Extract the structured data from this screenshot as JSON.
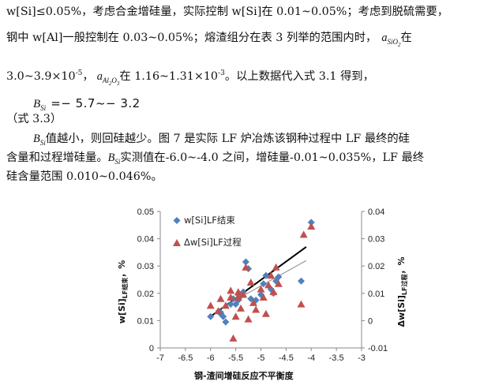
{
  "text": {
    "line1": "w[Si]≤0.05%，考虑合金增硅量，实际控制 w[Si]在 0.01~0.05%；考虑到脱硫需要，",
    "line2a": "钢中 w[Al]一般控制在 0.03~0.05%；熔渣组分在表 3 列举的范围内时，",
    "a_sym": "a",
    "sio2_sub": "SiO",
    "sio2_sub2": "2",
    "line2b": "在",
    "line3a": "3.0~3.9×10",
    "line3a_sup": "-5",
    "line3b": "，",
    "al2o3_sub": "Al",
    "al2o3_sub2": "2",
    "al2o3_sub3": "O",
    "al2o3_sub4": "3",
    "line3c": "在 1.16~1.31×10",
    "line3c_sup": "-3",
    "line3d": "。以上数据代入式 3.1 得到，",
    "formula_sym": "B",
    "formula_sub": "Si",
    "formula_rhs": "=− 5.7~− 3.2",
    "eq_label": "（式 3.3）",
    "para_sym": "B",
    "para_sub": "Si",
    "para1": "值越小，则回硅越少。图 7 是实际 LF 炉冶炼该钢种过程中 LF 最终的硅",
    "para2a": "含量和过程增硅量。",
    "para2b": "实测值在-6.0~-4.0 之间，增硅量-0.01~0.035%，LF 最终",
    "para3": "硅含量范围 0.010~0.046%。"
  },
  "chart_data": {
    "type": "scatter",
    "title": "",
    "xlabel": "钢-渣间增硅反应不平衡度",
    "ylabel_left": "w[Si]",
    "ylabel_left_sub": "LF结束",
    "ylabel_left_unit": "，%",
    "ylabel_right": "Δw[Si]",
    "ylabel_right_sub": "LF过程",
    "ylabel_right_unit": "，%",
    "xlim": [
      -7,
      -3
    ],
    "ylim_left": [
      0,
      0.05
    ],
    "ylim_right": [
      -0.01,
      0.04
    ],
    "x_ticks": [
      "-7",
      "-6.5",
      "-6",
      "-5.5",
      "-5",
      "-4.5",
      "-4",
      "-3.5",
      "-3"
    ],
    "y_left_ticks": [
      "0",
      "0.01",
      "0.02",
      "0.03",
      "0.04",
      "0.05"
    ],
    "y_right_ticks": [
      "-0.01",
      "0",
      "0.01",
      "0.02",
      "0.03",
      "0.04"
    ],
    "legend_placement": "top-left",
    "series": [
      {
        "name": "w[Si]LF结束",
        "marker": "diamond",
        "color": "#4f81bd",
        "axis": "left",
        "points": [
          [
            -6.0,
            0.0115
          ],
          [
            -5.8,
            0.013
          ],
          [
            -5.75,
            0.0115
          ],
          [
            -5.7,
            0.0095
          ],
          [
            -5.6,
            0.016
          ],
          [
            -5.55,
            0.018
          ],
          [
            -5.5,
            0.016
          ],
          [
            -5.45,
            0.0175
          ],
          [
            -5.4,
            0.019
          ],
          [
            -5.35,
            0.0205
          ],
          [
            -5.3,
            0.0315
          ],
          [
            -5.25,
            0.029
          ],
          [
            -5.2,
            0.018
          ],
          [
            -5.1,
            0.0175
          ],
          [
            -5.0,
            0.0195
          ],
          [
            -4.95,
            0.0235
          ],
          [
            -4.9,
            0.0265
          ],
          [
            -4.8,
            0.0215
          ],
          [
            -4.75,
            0.02
          ],
          [
            -4.7,
            0.0245
          ],
          [
            -4.65,
            0.026
          ],
          [
            -4.2,
            0.0245
          ],
          [
            -4.0,
            0.046
          ],
          [
            -5.8,
            0.0125
          ],
          [
            -5.45,
            0.0195
          ]
        ]
      },
      {
        "name": "Δw[Si]LF过程",
        "marker": "triangle",
        "color": "#c0504d",
        "axis": "right",
        "points": [
          [
            -6.0,
            0.0055
          ],
          [
            -5.85,
            0.0035
          ],
          [
            -5.8,
            0.008
          ],
          [
            -5.7,
            0.0055
          ],
          [
            -5.6,
            0.011
          ],
          [
            -5.55,
            -0.0065
          ],
          [
            -5.5,
            0.0015
          ],
          [
            -5.45,
            0.0085
          ],
          [
            -5.4,
            0.0045
          ],
          [
            -5.35,
            0.0095
          ],
          [
            -5.3,
            0.0195
          ],
          [
            -5.25,
            0.0005
          ],
          [
            -5.2,
            0.014
          ],
          [
            -5.1,
            0.004
          ],
          [
            -5.0,
            0.0115
          ],
          [
            -4.95,
            0.0085
          ],
          [
            -4.9,
            0.0025
          ],
          [
            -4.85,
            0.013
          ],
          [
            -4.8,
            0.0165
          ],
          [
            -4.75,
            0.0105
          ],
          [
            -4.7,
            0.0195
          ],
          [
            -4.2,
            0.006
          ],
          [
            -4.15,
            0.0315
          ],
          [
            -4.0,
            0.0345
          ],
          [
            -5.6,
            0.0085
          ],
          [
            -5.15,
            0.0065
          ],
          [
            -4.65,
            0.0135
          ],
          [
            -5.45,
            0.0105
          ]
        ]
      }
    ],
    "trendlines": [
      {
        "series": "w[Si]LF结束",
        "color": "#000000",
        "from": [
          -6.0,
          0.0115
        ],
        "to": [
          -4.1,
          0.037
        ]
      },
      {
        "series": "Δw[Si]LF过程",
        "color": "#888888",
        "from": [
          -5.9,
          0.0035
        ],
        "to": [
          -4.1,
          0.022
        ]
      }
    ]
  }
}
